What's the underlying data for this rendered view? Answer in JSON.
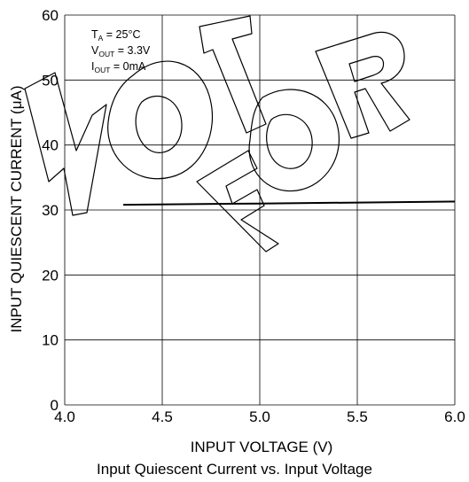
{
  "chart_data": {
    "type": "line",
    "x_label": "INPUT VOLTAGE (V)",
    "y_label": "INPUT QUIESCENT CURRENT (μA)",
    "caption": "Input Quiescent Current vs. Input Voltage",
    "x_range": [
      4.0,
      6.0
    ],
    "y_range": [
      0,
      60
    ],
    "x_ticks": [
      "4.0",
      "4.5",
      "5.0",
      "5.5",
      "6.0"
    ],
    "y_ticks": [
      "0",
      "10",
      "20",
      "30",
      "40",
      "50",
      "60"
    ],
    "grid": true,
    "series": [
      {
        "x": [
          4.3,
          5.0,
          6.0
        ],
        "y": [
          30.8,
          31.0,
          31.3
        ]
      }
    ],
    "annotations": [
      {
        "main": "T",
        "sub": "A",
        "rest": " = 25°C"
      },
      {
        "main": "V",
        "sub": "OUT",
        "rest": " = 3.3V"
      },
      {
        "main": "I",
        "sub": "OUT",
        "rest": " = 0mA"
      }
    ],
    "watermark": "NOT FOR"
  },
  "colors": {
    "line": "#000000",
    "grid": "#000000",
    "watermark": "#000000"
  }
}
